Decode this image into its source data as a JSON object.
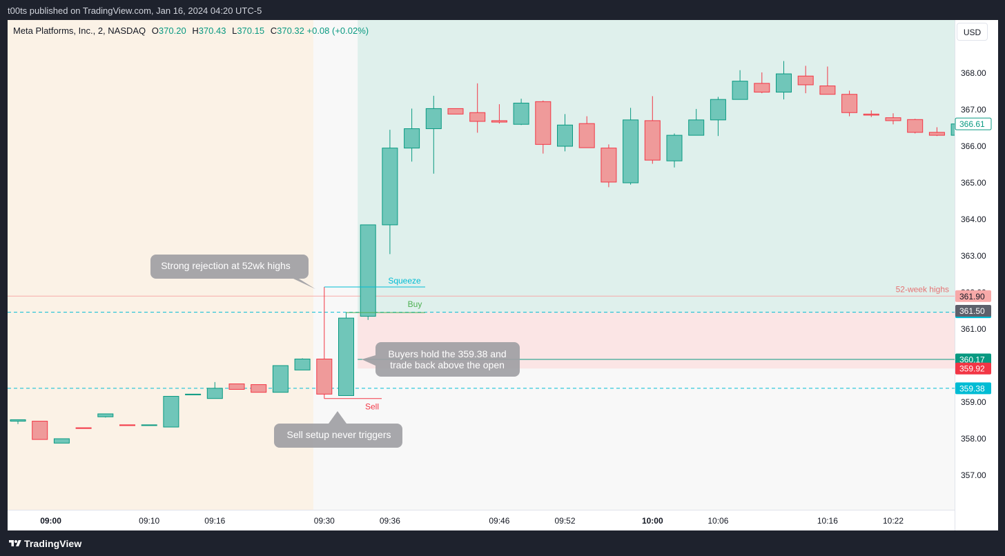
{
  "header": {
    "publisher_line": "t00ts published on TradingView.com, Jan 16, 2024 04:20 UTC-5"
  },
  "footer": {
    "brand": "TradingView"
  },
  "toolbar": {
    "currency_label": "USD"
  },
  "legend": {
    "symbol": "Meta Platforms, Inc., 2, NASDAQ",
    "o_label": "O",
    "o_value": "370.20",
    "h_label": "H",
    "h_value": "370.43",
    "l_label": "L",
    "l_value": "370.15",
    "c_label": "C",
    "c_value": "370.32",
    "change": "+0.08 (+0.02%)"
  },
  "colors": {
    "up": "#089981",
    "up_fill": "#70c6b9",
    "down": "#f23645",
    "down_fill": "#ef9a9a",
    "premarket_bg": "#fbf2e6",
    "session_bg": "#f8f8f8",
    "profit_zone": "#dff0ec",
    "loss_zone": "#fbe5e5",
    "cyan": "#00bcd4"
  },
  "chart_data": {
    "type": "candlestick",
    "timeframe_minutes": 2,
    "y_range": [
      356.0,
      369.0
    ],
    "y_ticks": [
      357,
      358,
      359,
      360,
      361,
      362,
      363,
      364,
      365,
      366,
      367,
      368
    ],
    "y_tick_labels": [
      "357.00",
      "358.00",
      "359.00",
      "360.00",
      "361.00",
      "362.00",
      "363.00",
      "364.00",
      "365.00",
      "366.00",
      "367.00",
      "368.00"
    ],
    "x_ticks": [
      {
        "bar": 1.5,
        "label": "09:00",
        "bold": true
      },
      {
        "bar": 6,
        "label": "09:10",
        "bold": false
      },
      {
        "bar": 9,
        "label": "09:16",
        "bold": false
      },
      {
        "bar": 14,
        "label": "09:30",
        "bold": false
      },
      {
        "bar": 17,
        "label": "09:36",
        "bold": false
      },
      {
        "bar": 22,
        "label": "09:46",
        "bold": false
      },
      {
        "bar": 25,
        "label": "09:52",
        "bold": false
      },
      {
        "bar": 29,
        "label": "10:00",
        "bold": true
      },
      {
        "bar": 32,
        "label": "10:06",
        "bold": false
      },
      {
        "bar": 37,
        "label": "10:16",
        "bold": false
      },
      {
        "bar": 40,
        "label": "10:22",
        "bold": false
      }
    ],
    "candles": [
      {
        "o": 358.48,
        "h": 358.52,
        "l": 358.4,
        "c": 358.52
      },
      {
        "o": 358.48,
        "h": 358.48,
        "l": 357.98,
        "c": 357.98
      },
      {
        "o": 357.88,
        "h": 358.0,
        "l": 357.88,
        "c": 358.0
      },
      {
        "o": 358.3,
        "h": 358.3,
        "l": 358.28,
        "c": 358.28
      },
      {
        "o": 358.6,
        "h": 358.68,
        "l": 358.58,
        "c": 358.68
      },
      {
        "o": 358.38,
        "h": 358.38,
        "l": 358.36,
        "c": 358.36
      },
      {
        "o": 358.36,
        "h": 358.38,
        "l": 358.36,
        "c": 358.38
      },
      {
        "o": 358.32,
        "h": 359.16,
        "l": 358.32,
        "c": 359.16
      },
      {
        "o": 359.2,
        "h": 359.22,
        "l": 359.2,
        "c": 359.22
      },
      {
        "o": 359.1,
        "h": 359.55,
        "l": 359.1,
        "c": 359.38
      },
      {
        "o": 359.5,
        "h": 359.5,
        "l": 359.35,
        "c": 359.35
      },
      {
        "o": 359.48,
        "h": 359.48,
        "l": 359.27,
        "c": 359.27
      },
      {
        "o": 359.27,
        "h": 360.0,
        "l": 359.27,
        "c": 360.0
      },
      {
        "o": 359.88,
        "h": 360.2,
        "l": 359.88,
        "c": 360.18
      },
      {
        "o": 360.18,
        "h": 362.15,
        "l": 359.1,
        "c": 359.22
      },
      {
        "o": 359.18,
        "h": 361.45,
        "l": 359.18,
        "c": 361.3
      },
      {
        "o": 361.35,
        "h": 363.85,
        "l": 361.25,
        "c": 363.85
      },
      {
        "o": 363.85,
        "h": 366.45,
        "l": 363.05,
        "c": 365.95
      },
      {
        "o": 365.95,
        "h": 367.03,
        "l": 365.58,
        "c": 366.48
      },
      {
        "o": 366.48,
        "h": 367.38,
        "l": 365.25,
        "c": 367.03
      },
      {
        "o": 367.03,
        "h": 367.03,
        "l": 366.88,
        "c": 366.88
      },
      {
        "o": 366.92,
        "h": 367.72,
        "l": 366.37,
        "c": 366.68
      },
      {
        "o": 366.7,
        "h": 367.15,
        "l": 366.62,
        "c": 366.66
      },
      {
        "o": 366.6,
        "h": 367.3,
        "l": 366.58,
        "c": 367.18
      },
      {
        "o": 367.22,
        "h": 367.25,
        "l": 365.8,
        "c": 366.05
      },
      {
        "o": 366.0,
        "h": 366.88,
        "l": 365.86,
        "c": 366.58
      },
      {
        "o": 366.62,
        "h": 366.82,
        "l": 365.98,
        "c": 365.96
      },
      {
        "o": 365.95,
        "h": 366.05,
        "l": 364.88,
        "c": 365.02
      },
      {
        "o": 365.0,
        "h": 367.05,
        "l": 364.95,
        "c": 366.72
      },
      {
        "o": 366.7,
        "h": 367.37,
        "l": 365.52,
        "c": 365.62
      },
      {
        "o": 365.6,
        "h": 366.35,
        "l": 365.42,
        "c": 366.3
      },
      {
        "o": 366.3,
        "h": 367.02,
        "l": 366.3,
        "c": 366.72
      },
      {
        "o": 366.72,
        "h": 367.35,
        "l": 366.28,
        "c": 367.28
      },
      {
        "o": 367.28,
        "h": 368.08,
        "l": 367.28,
        "c": 367.78
      },
      {
        "o": 367.72,
        "h": 368.02,
        "l": 367.45,
        "c": 367.48
      },
      {
        "o": 367.48,
        "h": 368.33,
        "l": 367.28,
        "c": 367.98
      },
      {
        "o": 367.92,
        "h": 368.2,
        "l": 367.45,
        "c": 367.68
      },
      {
        "o": 367.65,
        "h": 368.18,
        "l": 367.42,
        "c": 367.42
      },
      {
        "o": 367.42,
        "h": 367.52,
        "l": 366.82,
        "c": 366.92
      },
      {
        "o": 366.88,
        "h": 366.98,
        "l": 366.8,
        "c": 366.85
      },
      {
        "o": 366.78,
        "h": 366.9,
        "l": 366.6,
        "c": 366.7
      },
      {
        "o": 366.73,
        "h": 366.75,
        "l": 366.35,
        "c": 366.38
      },
      {
        "o": 366.38,
        "h": 366.52,
        "l": 366.28,
        "c": 366.3
      },
      {
        "o": 366.3,
        "h": 366.9,
        "l": 366.2,
        "c": 366.61
      }
    ],
    "levels": [
      {
        "price": 361.9,
        "label": "52-week highs",
        "style": "solid",
        "color": "#f7a9a8",
        "tag": "361.90",
        "tag_bg": "#f7a9a8"
      },
      {
        "price": 361.46,
        "label": "",
        "style": "dashed",
        "color": "#00bcd4",
        "tag": "361.46",
        "tag_bg": "#00bcd4"
      },
      {
        "price": 359.38,
        "label": "",
        "style": "dashed",
        "color": "#00bcd4",
        "tag": "359.38",
        "tag_bg": "#00bcd4"
      }
    ],
    "axis_tags": [
      {
        "price": 366.61,
        "text": "366.61",
        "style": "outline",
        "color": "#089981"
      },
      {
        "price": 361.5,
        "text": "361.50",
        "style": "fill",
        "color": "#5d606b"
      },
      {
        "price": 360.17,
        "text": "360.17",
        "style": "fill",
        "color": "#089981"
      },
      {
        "price": 359.92,
        "text": "359.92",
        "style": "fill",
        "color": "#f23645"
      }
    ],
    "setup_lines": [
      {
        "name": "Squeeze",
        "price": 362.15,
        "color": "#00bcd4"
      },
      {
        "name": "Buy",
        "price": 361.45,
        "color": "#4caf50"
      },
      {
        "name": "Sell",
        "price": 359.1,
        "color": "#f23645"
      }
    ],
    "position": {
      "entry": 360.17,
      "target_top": 369.0,
      "stop": 359.92,
      "start_bar": 16
    },
    "annotations": [
      {
        "text": "Strong rejection at 52wk highs"
      },
      {
        "text_lines": [
          "Buyers hold the 359.38 and",
          "trade back above the open"
        ]
      },
      {
        "text": "Sell setup never triggers"
      }
    ]
  }
}
